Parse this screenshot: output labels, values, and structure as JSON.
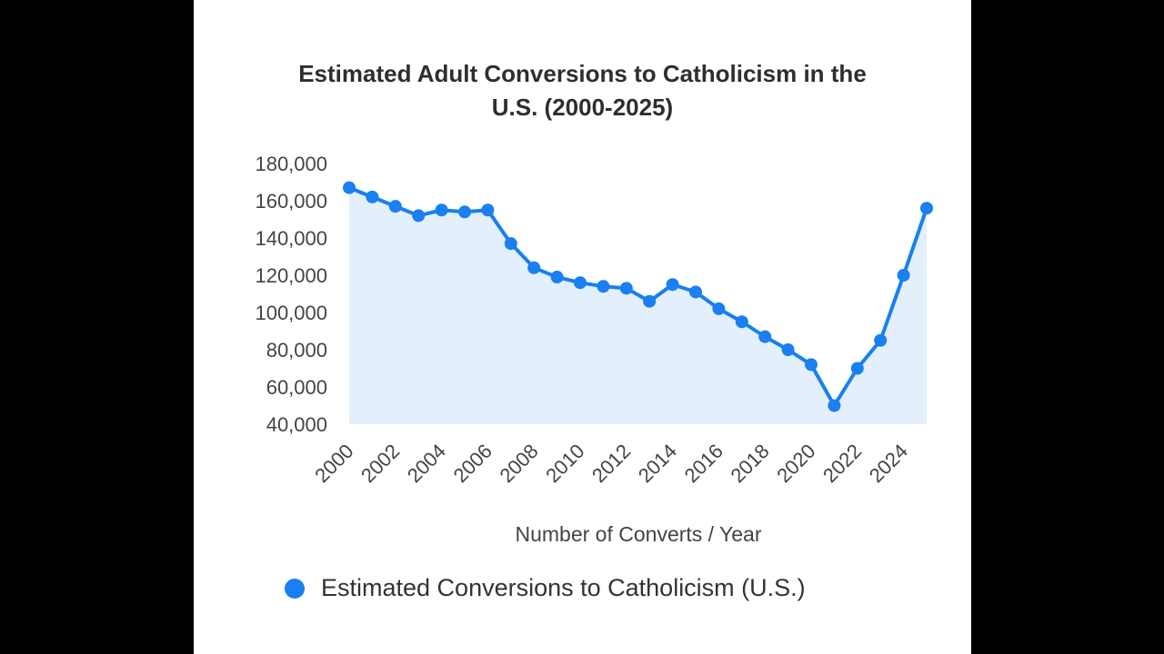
{
  "colors": {
    "page_background": "#000000",
    "chart_background": "#ffffff",
    "series": "#1a7ff0",
    "area_fill": "#e3effb",
    "text": "#333333"
  },
  "chart_data": {
    "type": "line",
    "title_lines": [
      "Estimated Adult Conversions to Catholicism in the",
      "U.S. (2000-2025)"
    ],
    "xlabel": "Number of Converts / Year",
    "ylabel": "",
    "ylim": [
      40000,
      180000
    ],
    "yticks": [
      40000,
      60000,
      80000,
      100000,
      120000,
      140000,
      160000,
      180000
    ],
    "ytick_labels": [
      "40,000",
      "60,000",
      "80,000",
      "100,000",
      "120,000",
      "140,000",
      "160,000",
      "180,000"
    ],
    "xlim": [
      2000,
      2025
    ],
    "xticks": [
      2000,
      2002,
      2004,
      2006,
      2008,
      2010,
      2012,
      2014,
      2016,
      2018,
      2020,
      2022,
      2024
    ],
    "xtick_labels": [
      "2000",
      "2002",
      "2004",
      "2006",
      "2008",
      "2010",
      "2012",
      "2014",
      "2016",
      "2018",
      "2020",
      "2022",
      "2024"
    ],
    "grid": false,
    "legend_position": "bottom",
    "area_fill": true,
    "series": [
      {
        "name": "Estimated Conversions to Catholicism (U.S.)",
        "color": "#1a7ff0",
        "points": [
          {
            "x": 2000,
            "y": 167000
          },
          {
            "x": 2001,
            "y": 162000
          },
          {
            "x": 2002,
            "y": 157000
          },
          {
            "x": 2003,
            "y": 152000
          },
          {
            "x": 2004,
            "y": 155000
          },
          {
            "x": 2005,
            "y": 154000
          },
          {
            "x": 2006,
            "y": 155000
          },
          {
            "x": 2007,
            "y": 137000
          },
          {
            "x": 2008,
            "y": 124000
          },
          {
            "x": 2009,
            "y": 119000
          },
          {
            "x": 2010,
            "y": 116000
          },
          {
            "x": 2011,
            "y": 114000
          },
          {
            "x": 2012,
            "y": 113000
          },
          {
            "x": 2013,
            "y": 106000
          },
          {
            "x": 2014,
            "y": 115000
          },
          {
            "x": 2015,
            "y": 111000
          },
          {
            "x": 2016,
            "y": 102000
          },
          {
            "x": 2017,
            "y": 95000
          },
          {
            "x": 2018,
            "y": 87000
          },
          {
            "x": 2019,
            "y": 80000
          },
          {
            "x": 2020,
            "y": 72000
          },
          {
            "x": 2021,
            "y": 50000
          },
          {
            "x": 2022,
            "y": 70000
          },
          {
            "x": 2023,
            "y": 85000
          },
          {
            "x": 2024,
            "y": 120000
          },
          {
            "x": 2025,
            "y": 156000
          }
        ]
      }
    ]
  }
}
